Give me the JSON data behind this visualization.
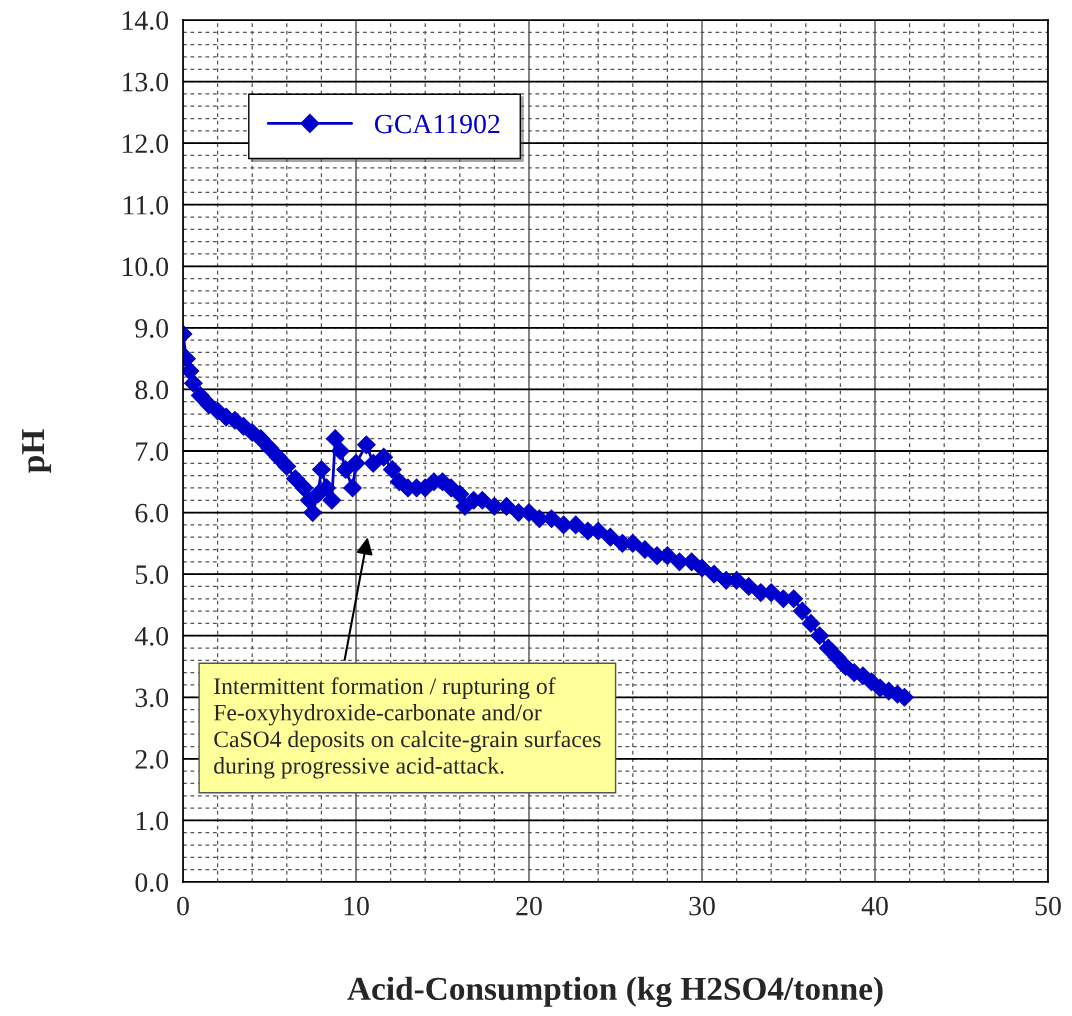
{
  "chart_data": {
    "type": "line",
    "xlabel": "Acid-Consumption (kg H2SO4/tonne)",
    "ylabel": "pH",
    "x": [
      0,
      0.2,
      0.4,
      0.6,
      1,
      1.5,
      2,
      2.5,
      3,
      3.5,
      4,
      4.5,
      5,
      5.5,
      6,
      6.5,
      7,
      7.3,
      7.5,
      7.8,
      8,
      8.3,
      8.6,
      8.8,
      9.1,
      9.4,
      9.8,
      10,
      10.6,
      11,
      11.6,
      12.1,
      12.5,
      13,
      13.5,
      14,
      14.5,
      15,
      15.5,
      16,
      16.3,
      16.8,
      17.3,
      18,
      18.7,
      19.4,
      20,
      20.6,
      21.3,
      22,
      22.7,
      23.4,
      24,
      24.7,
      25.4,
      26,
      26.7,
      27.4,
      28,
      28.7,
      29.4,
      30,
      30.7,
      31.4,
      32,
      32.7,
      33.4,
      34,
      34.7,
      35.3,
      35.8,
      36.3,
      36.8,
      37.3,
      37.8,
      38.3,
      38.8,
      39.3,
      39.8,
      40.3,
      40.8,
      41.3,
      41.7
    ],
    "series": [
      {
        "name": "GCA11902",
        "color": "#0000cc",
        "values": [
          8.9,
          8.5,
          8.3,
          8.1,
          7.9,
          7.75,
          7.65,
          7.55,
          7.5,
          7.4,
          7.3,
          7.2,
          7.05,
          6.9,
          6.75,
          6.55,
          6.4,
          6.2,
          6.0,
          6.3,
          6.7,
          6.4,
          6.2,
          7.2,
          7.0,
          6.7,
          6.4,
          6.8,
          7.1,
          6.8,
          6.9,
          6.7,
          6.5,
          6.4,
          6.4,
          6.4,
          6.5,
          6.5,
          6.4,
          6.3,
          6.1,
          6.2,
          6.2,
          6.1,
          6.1,
          6.0,
          6.0,
          5.9,
          5.9,
          5.8,
          5.8,
          5.7,
          5.7,
          5.6,
          5.5,
          5.5,
          5.4,
          5.3,
          5.3,
          5.2,
          5.2,
          5.1,
          5.0,
          4.9,
          4.9,
          4.8,
          4.7,
          4.7,
          4.6,
          4.6,
          4.4,
          4.2,
          4.0,
          3.8,
          3.65,
          3.5,
          3.4,
          3.35,
          3.25,
          3.15,
          3.1,
          3.05,
          3.0
        ]
      }
    ],
    "marker": "diamond",
    "line_style": "solid",
    "grid": true,
    "legend": "top left",
    "xlim": [
      0,
      50
    ],
    "xticks": [
      0,
      {
        "value": 2,
        "label": null
      },
      {
        "value": 4,
        "label": null
      },
      {
        "value": 6,
        "label": null
      },
      {
        "value": 8,
        "label": null
      },
      10,
      {
        "value": 12,
        "label": null
      },
      {
        "value": 14,
        "label": null
      },
      {
        "value": 16,
        "label": null
      },
      {
        "value": 18,
        "label": null
      },
      20,
      {
        "value": 22,
        "label": null
      },
      {
        "value": 24,
        "label": null
      },
      {
        "value": 26,
        "label": null
      },
      {
        "value": 28,
        "label": null
      },
      30,
      {
        "value": 32,
        "label": null
      },
      {
        "value": 34,
        "label": null
      },
      {
        "value": 36,
        "label": null
      },
      {
        "value": 38,
        "label": null
      },
      40,
      {
        "value": 42,
        "label": null
      },
      {
        "value": 44,
        "label": null
      },
      {
        "value": 46,
        "label": null
      },
      {
        "value": 48,
        "label": null
      },
      50
    ],
    "ylim": [
      0,
      14
    ],
    "yticks": [
      {
        "value": 0,
        "label": "0.0"
      },
      {
        "value": 1,
        "label": "1.0"
      },
      {
        "value": 2,
        "label": "2.0"
      },
      {
        "value": 3,
        "label": "3.0"
      },
      {
        "value": 4,
        "label": "4.0"
      },
      {
        "value": 5,
        "label": "5.0"
      },
      {
        "value": 6,
        "label": "6.0"
      },
      {
        "value": 7,
        "label": "7.0"
      },
      {
        "value": 8,
        "label": "8.0"
      },
      {
        "value": 9,
        "label": "9.0"
      },
      {
        "value": 10,
        "label": "10.0"
      },
      {
        "value": 11,
        "label": "11.0"
      },
      {
        "value": 12,
        "label": "12.0"
      },
      {
        "value": 13,
        "label": "13.0"
      },
      {
        "value": 14,
        "label": "14.0"
      }
    ],
    "annotations": [
      "Intermittent formation / rupturing of\nFe-oxyhydroxide-carbonate and/or\nCaSO4 deposits on calcite-grain surfaces\nduring progressive acid-attack."
    ]
  }
}
